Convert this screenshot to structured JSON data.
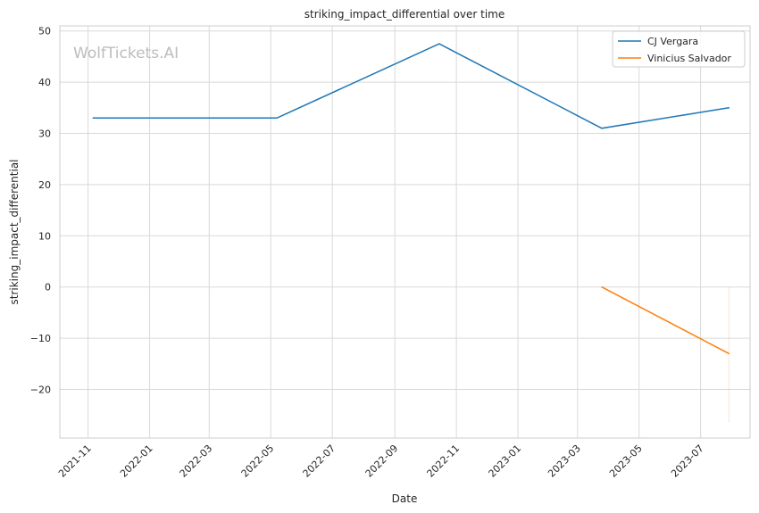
{
  "chart_data": {
    "type": "line",
    "title": "striking_impact_differential over time",
    "xlabel": "Date",
    "ylabel": "striking_impact_differential",
    "watermark": "WolfTickets.AI",
    "x_ticks": [
      "2021-11",
      "2022-01",
      "2022-03",
      "2022-05",
      "2022-07",
      "2022-09",
      "2022-11",
      "2023-01",
      "2023-03",
      "2023-05",
      "2023-07"
    ],
    "y_ticks": [
      -20,
      -10,
      0,
      10,
      20,
      30,
      40,
      50
    ],
    "xlim": [
      "2021-10-04",
      "2023-08-19"
    ],
    "ylim": [
      -29.5,
      51
    ],
    "grid": true,
    "legend_position": "top-right",
    "series": [
      {
        "name": "CJ Vergara",
        "color": "#1f77b4",
        "points": [
          [
            "2021-11-06",
            33
          ],
          [
            "2022-05-07",
            33
          ],
          [
            "2022-10-15",
            47.5
          ],
          [
            "2023-03-25",
            31
          ],
          [
            "2023-07-29",
            35
          ]
        ]
      },
      {
        "name": "Vinicius Salvador",
        "color": "#ff7f0e",
        "points": [
          [
            "2023-03-25",
            0
          ],
          [
            "2023-07-29",
            -13
          ]
        ]
      }
    ],
    "annotations": [
      {
        "type": "vertical_range",
        "x": "2023-07-29",
        "y_from": 0,
        "y_to": -26.5,
        "color": "#ff7f0e"
      }
    ]
  }
}
